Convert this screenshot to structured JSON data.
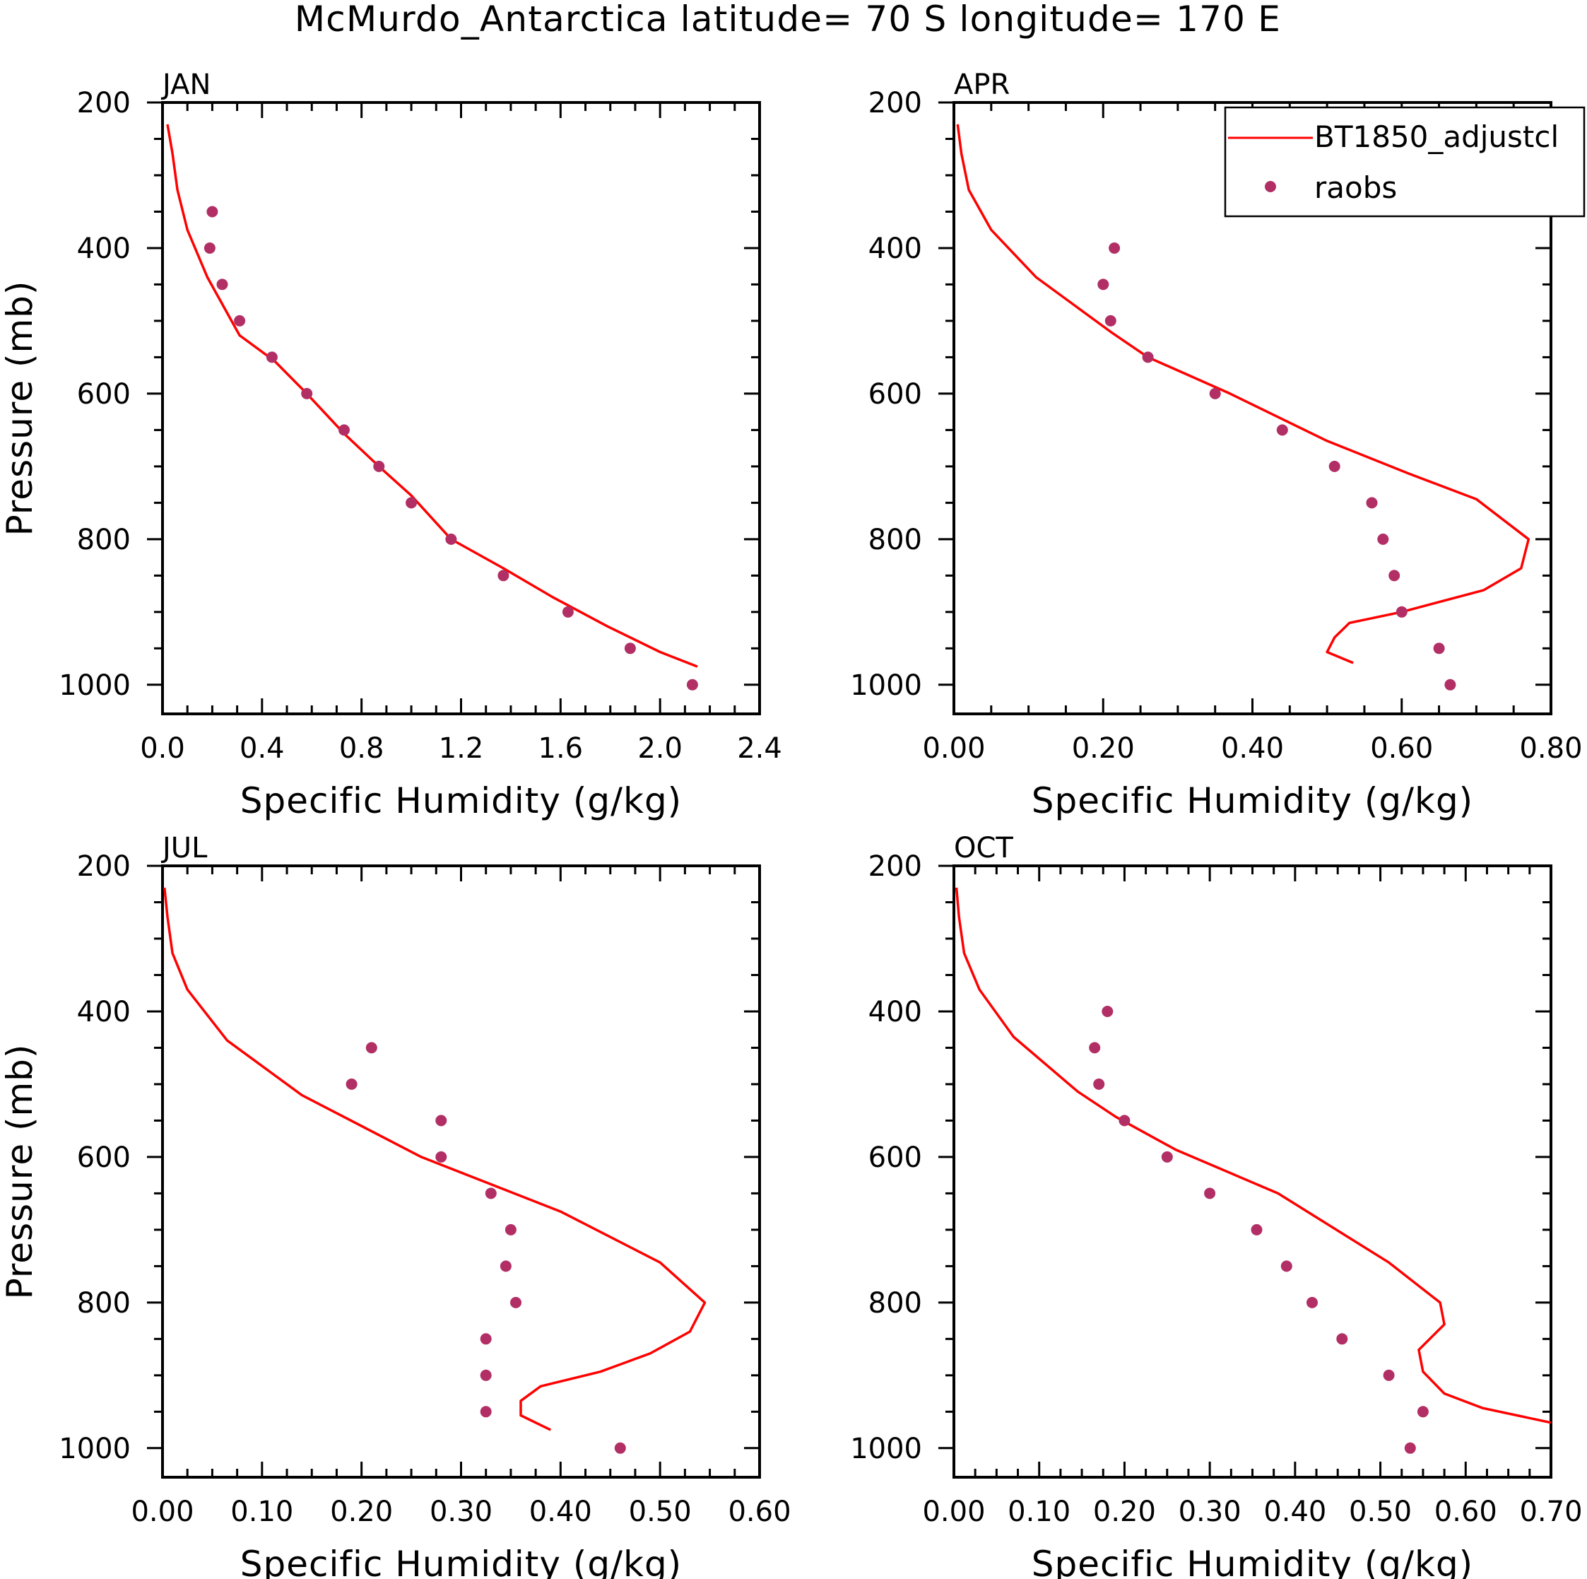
{
  "chart_data": {
    "type": "line",
    "title": "McMurdo_Antarctica  latitude= 70 S longitude= 170 E",
    "series_names": [
      "BT1850_adjustcl",
      "raobs"
    ],
    "colors": {
      "model": "#ff0000",
      "obs": "#b22f66",
      "axes": "#000000"
    },
    "legend": {
      "position": "top-right of APR panel",
      "entries": [
        {
          "label": "BT1850_adjustcl",
          "style": "line"
        },
        {
          "label": "raobs",
          "style": "marker"
        }
      ]
    },
    "panels": [
      {
        "month": "JAN",
        "xlabel": "Specific Humidity (g/kg)",
        "ylabel": "Pressure (mb)",
        "xlim": [
          0,
          2.4
        ],
        "ylim": [
          200,
          1040
        ],
        "xticks": [
          "0.0",
          "0.4",
          "0.8",
          "1.2",
          "1.6",
          "2.0",
          "2.4"
        ],
        "yticks": [
          "200",
          "400",
          "600",
          "800",
          "1000"
        ],
        "model": [
          [
            0.02,
            230
          ],
          [
            0.04,
            270
          ],
          [
            0.06,
            320
          ],
          [
            0.1,
            375
          ],
          [
            0.18,
            440
          ],
          [
            0.31,
            520
          ],
          [
            0.45,
            555
          ],
          [
            0.58,
            600
          ],
          [
            0.73,
            655
          ],
          [
            0.87,
            700
          ],
          [
            1.0,
            740
          ],
          [
            1.16,
            800
          ],
          [
            1.37,
            840
          ],
          [
            1.57,
            880
          ],
          [
            1.79,
            920
          ],
          [
            2.0,
            955
          ],
          [
            2.15,
            975
          ]
        ],
        "obs": [
          [
            0.2,
            350
          ],
          [
            0.19,
            400
          ],
          [
            0.24,
            450
          ],
          [
            0.31,
            500
          ],
          [
            0.44,
            550
          ],
          [
            0.58,
            600
          ],
          [
            0.73,
            650
          ],
          [
            0.87,
            700
          ],
          [
            1.0,
            750
          ],
          [
            1.16,
            800
          ],
          [
            1.37,
            850
          ],
          [
            1.63,
            900
          ],
          [
            1.88,
            950
          ],
          [
            2.13,
            1000
          ]
        ]
      },
      {
        "month": "APR",
        "xlabel": "Specific Humidity (g/kg)",
        "ylabel": "",
        "xlim": [
          0,
          0.8
        ],
        "ylim": [
          200,
          1040
        ],
        "xticks": [
          "0.00",
          "0.20",
          "0.40",
          "0.60",
          "0.80"
        ],
        "yticks": [
          "200",
          "400",
          "600",
          "800",
          "1000"
        ],
        "model": [
          [
            0.005,
            230
          ],
          [
            0.01,
            270
          ],
          [
            0.02,
            320
          ],
          [
            0.05,
            375
          ],
          [
            0.11,
            440
          ],
          [
            0.21,
            515
          ],
          [
            0.26,
            550
          ],
          [
            0.37,
            600
          ],
          [
            0.5,
            665
          ],
          [
            0.61,
            710
          ],
          [
            0.7,
            745
          ],
          [
            0.77,
            800
          ],
          [
            0.76,
            840
          ],
          [
            0.71,
            870
          ],
          [
            0.6,
            900
          ],
          [
            0.53,
            915
          ],
          [
            0.51,
            935
          ],
          [
            0.5,
            955
          ],
          [
            0.535,
            970
          ]
        ],
        "obs": [
          [
            0.215,
            400
          ],
          [
            0.2,
            450
          ],
          [
            0.21,
            500
          ],
          [
            0.26,
            550
          ],
          [
            0.35,
            600
          ],
          [
            0.44,
            650
          ],
          [
            0.51,
            700
          ],
          [
            0.56,
            750
          ],
          [
            0.575,
            800
          ],
          [
            0.59,
            850
          ],
          [
            0.6,
            900
          ],
          [
            0.65,
            950
          ],
          [
            0.665,
            1000
          ]
        ]
      },
      {
        "month": "JUL",
        "xlabel": "Specific Humidity (g/kg)",
        "ylabel": "Pressure (mb)",
        "xlim": [
          0,
          0.6
        ],
        "ylim": [
          200,
          1040
        ],
        "xticks": [
          "0.00",
          "0.10",
          "0.20",
          "0.30",
          "0.40",
          "0.50",
          "0.60"
        ],
        "yticks": [
          "200",
          "400",
          "600",
          "800",
          "1000"
        ],
        "model": [
          [
            0.002,
            230
          ],
          [
            0.005,
            270
          ],
          [
            0.01,
            320
          ],
          [
            0.025,
            370
          ],
          [
            0.065,
            440
          ],
          [
            0.14,
            515
          ],
          [
            0.26,
            600
          ],
          [
            0.4,
            675
          ],
          [
            0.5,
            745
          ],
          [
            0.545,
            800
          ],
          [
            0.53,
            840
          ],
          [
            0.49,
            870
          ],
          [
            0.44,
            895
          ],
          [
            0.38,
            915
          ],
          [
            0.36,
            935
          ],
          [
            0.36,
            955
          ],
          [
            0.39,
            975
          ]
        ],
        "obs": [
          [
            0.21,
            450
          ],
          [
            0.19,
            500
          ],
          [
            0.28,
            550
          ],
          [
            0.28,
            600
          ],
          [
            0.33,
            650
          ],
          [
            0.35,
            700
          ],
          [
            0.345,
            750
          ],
          [
            0.355,
            800
          ],
          [
            0.325,
            850
          ],
          [
            0.325,
            900
          ],
          [
            0.325,
            950
          ],
          [
            0.46,
            1000
          ]
        ]
      },
      {
        "month": "OCT",
        "xlabel": "Specific Humidity (g/kg)",
        "ylabel": "",
        "xlim": [
          0,
          0.7
        ],
        "ylim": [
          200,
          1040
        ],
        "xticks": [
          "0.00",
          "0.10",
          "0.20",
          "0.30",
          "0.40",
          "0.50",
          "0.60",
          "0.70"
        ],
        "yticks": [
          "200",
          "400",
          "600",
          "800",
          "1000"
        ],
        "model": [
          [
            0.003,
            230
          ],
          [
            0.006,
            270
          ],
          [
            0.012,
            320
          ],
          [
            0.03,
            370
          ],
          [
            0.07,
            435
          ],
          [
            0.145,
            510
          ],
          [
            0.19,
            545
          ],
          [
            0.26,
            590
          ],
          [
            0.38,
            650
          ],
          [
            0.51,
            745
          ],
          [
            0.57,
            800
          ],
          [
            0.575,
            830
          ],
          [
            0.545,
            865
          ],
          [
            0.55,
            895
          ],
          [
            0.575,
            925
          ],
          [
            0.62,
            945
          ],
          [
            0.7,
            965
          ]
        ],
        "obs": [
          [
            0.18,
            400
          ],
          [
            0.165,
            450
          ],
          [
            0.17,
            500
          ],
          [
            0.2,
            550
          ],
          [
            0.25,
            600
          ],
          [
            0.3,
            650
          ],
          [
            0.355,
            700
          ],
          [
            0.39,
            750
          ],
          [
            0.42,
            800
          ],
          [
            0.455,
            850
          ],
          [
            0.51,
            900
          ],
          [
            0.55,
            950
          ],
          [
            0.535,
            1000
          ]
        ]
      }
    ]
  }
}
